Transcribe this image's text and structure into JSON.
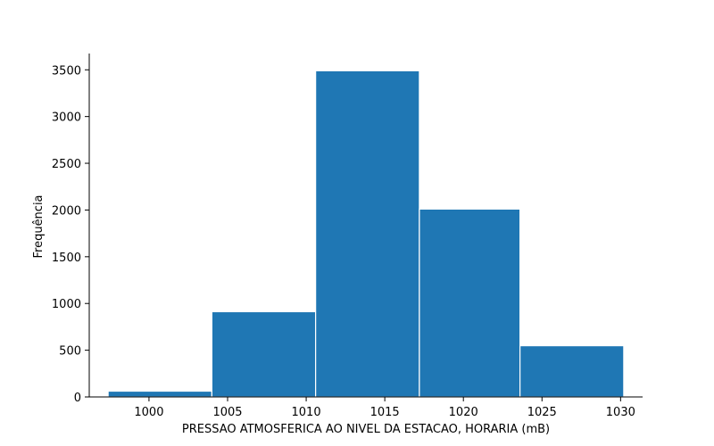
{
  "chart_data": {
    "type": "bar",
    "title": "",
    "xlabel": "PRESSAO ATMOSFERICA AO NIVEL DA ESTACAO, HORARIA (mB)",
    "ylabel": "Frequência",
    "bins": [
      {
        "start": 997.4,
        "end": 1004.0,
        "value": 62
      },
      {
        "start": 1004.0,
        "end": 1010.6,
        "value": 912
      },
      {
        "start": 1010.6,
        "end": 1017.2,
        "value": 3490
      },
      {
        "start": 1017.2,
        "end": 1023.6,
        "value": 2010
      },
      {
        "start": 1023.6,
        "end": 1030.2,
        "value": 548
      }
    ],
    "xticks": [
      1000,
      1005,
      1010,
      1015,
      1020,
      1025,
      1030
    ],
    "yticks": [
      0,
      500,
      1000,
      1500,
      2000,
      2500,
      3000,
      3500
    ],
    "xlim": [
      996.2,
      1031.4
    ],
    "ylim": [
      0,
      3493
    ],
    "bar_color": "#1f77b4",
    "edge_color": "#ffffff",
    "grid": false,
    "spines": [
      "left",
      "bottom"
    ]
  }
}
